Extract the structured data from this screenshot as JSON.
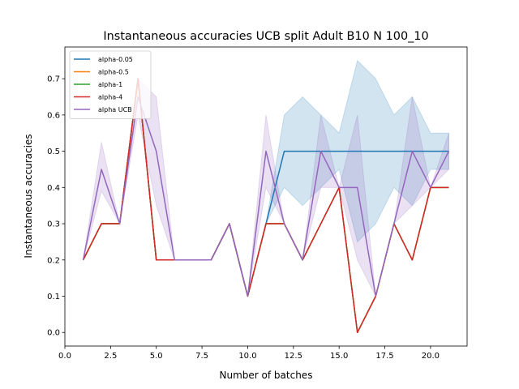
{
  "chart_data": {
    "type": "line",
    "title": "Instantaneous accuracies UCB split Adult B10 N 100_10",
    "xlabel": "Number of batches",
    "ylabel": "Instantaneous accuracies",
    "xlim": [
      0,
      22.0
    ],
    "ylim": [
      -0.0375,
      0.7875
    ],
    "xticks": [
      0,
      2.5,
      5,
      7.5,
      10,
      12.5,
      15,
      17.5,
      20
    ],
    "xtick_labels": [
      "0.0",
      "2.5",
      "5.0",
      "7.5",
      "10.0",
      "12.5",
      "15.0",
      "17.5",
      "20.0"
    ],
    "yticks": [
      0,
      0.1,
      0.2,
      0.3,
      0.4,
      0.5,
      0.6,
      0.7
    ],
    "ytick_labels": [
      "0.0",
      "0.1",
      "0.2",
      "0.3",
      "0.4",
      "0.5",
      "0.6",
      "0.7"
    ],
    "legend_position": "top-left",
    "x": [
      1,
      2,
      3,
      4,
      5,
      6,
      7,
      8,
      9,
      10,
      11,
      12,
      13,
      14,
      15,
      16,
      17,
      18,
      19,
      20,
      21
    ],
    "series": [
      {
        "name": "alpha-0.05",
        "color": "#1f77b4",
        "values": [
          0.2,
          0.3,
          0.3,
          0.7,
          0.2,
          0.2,
          0.2,
          0.2,
          0.3,
          0.1,
          0.3,
          0.5,
          0.5,
          0.5,
          0.5,
          0.5,
          0.5,
          0.5,
          0.5,
          0.5,
          0.5
        ],
        "band_lower": [
          0.2,
          0.3,
          0.3,
          0.7,
          0.2,
          0.2,
          0.2,
          0.2,
          0.3,
          0.1,
          0.3,
          0.4,
          0.35,
          0.4,
          0.45,
          0.25,
          0.3,
          0.4,
          0.35,
          0.45,
          0.45
        ],
        "band_upper": [
          0.2,
          0.3,
          0.3,
          0.7,
          0.2,
          0.2,
          0.2,
          0.2,
          0.3,
          0.1,
          0.3,
          0.6,
          0.65,
          0.6,
          0.55,
          0.75,
          0.7,
          0.6,
          0.65,
          0.55,
          0.55
        ]
      },
      {
        "name": "alpha-0.5",
        "color": "#ff7f0e",
        "values": [
          0.2,
          0.3,
          0.3,
          0.7,
          0.2,
          0.2,
          0.2,
          0.2,
          0.3,
          0.1,
          0.3,
          0.3,
          0.2,
          0.3,
          0.4,
          0.0,
          0.1,
          0.3,
          0.2,
          0.4,
          0.4
        ]
      },
      {
        "name": "alpha-1",
        "color": "#2ca02c",
        "values": [
          0.2,
          0.3,
          0.3,
          0.7,
          0.2,
          0.2,
          0.2,
          0.2,
          0.3,
          0.1,
          0.3,
          0.3,
          0.2,
          0.3,
          0.4,
          0.0,
          0.1,
          0.3,
          0.2,
          0.4,
          0.4
        ]
      },
      {
        "name": "alpha-4",
        "color": "#d62728",
        "values": [
          0.2,
          0.3,
          0.3,
          0.7,
          0.2,
          0.2,
          0.2,
          0.2,
          0.3,
          0.1,
          0.3,
          0.3,
          0.2,
          0.3,
          0.4,
          0.0,
          0.1,
          0.3,
          0.2,
          0.4,
          0.4
        ]
      },
      {
        "name": "alpha UCB",
        "color": "#9467bd",
        "values": [
          0.2,
          0.45,
          0.3,
          0.65,
          0.5,
          0.2,
          0.2,
          0.2,
          0.3,
          0.1,
          0.5,
          0.3,
          0.2,
          0.5,
          0.4,
          0.4,
          0.1,
          0.3,
          0.5,
          0.4,
          0.5
        ],
        "band_lower": [
          0.2,
          0.39,
          0.3,
          0.6,
          0.35,
          0.2,
          0.2,
          0.2,
          0.3,
          0.1,
          0.4,
          0.3,
          0.2,
          0.4,
          0.4,
          0.2,
          0.1,
          0.3,
          0.35,
          0.4,
          0.45
        ],
        "band_upper": [
          0.2,
          0.525,
          0.3,
          0.7,
          0.65,
          0.2,
          0.2,
          0.2,
          0.3,
          0.1,
          0.6,
          0.3,
          0.2,
          0.6,
          0.4,
          0.6,
          0.1,
          0.3,
          0.65,
          0.4,
          0.55
        ]
      }
    ]
  }
}
